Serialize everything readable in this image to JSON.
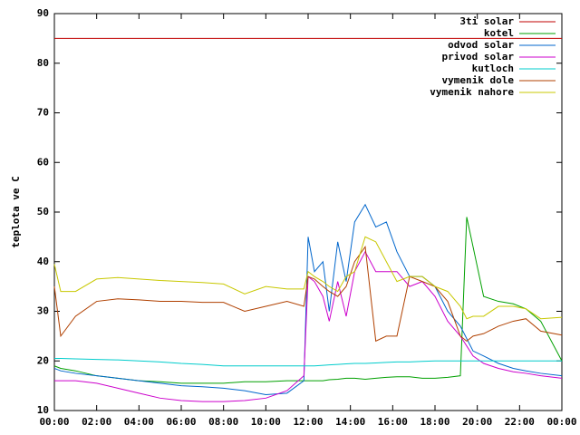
{
  "chart_data": {
    "type": "line",
    "y_label": "teplota ve C",
    "x": [
      0,
      0.3,
      1,
      2,
      3,
      4,
      5,
      6,
      7,
      8,
      9,
      10,
      11,
      11.8,
      12,
      12.3,
      12.7,
      13,
      13.4,
      13.8,
      14.2,
      14.7,
      15.2,
      15.7,
      16.2,
      16.8,
      17.4,
      18,
      18.6,
      19.2,
      19.5,
      19.8,
      20.3,
      21,
      21.7,
      22.3,
      23,
      24
    ],
    "xlim": [
      0,
      24
    ],
    "xticks": [
      {
        "value": 0,
        "label": "00:00"
      },
      {
        "value": 2,
        "label": "02:00"
      },
      {
        "value": 4,
        "label": "04:00"
      },
      {
        "value": 6,
        "label": "06:00"
      },
      {
        "value": 8,
        "label": "08:00"
      },
      {
        "value": 10,
        "label": "10:00"
      },
      {
        "value": 12,
        "label": "12:00"
      },
      {
        "value": 14,
        "label": "14:00"
      },
      {
        "value": 16,
        "label": "16:00"
      },
      {
        "value": 18,
        "label": "18:00"
      },
      {
        "value": 20,
        "label": "20:00"
      },
      {
        "value": 22,
        "label": "22:00"
      },
      {
        "value": 24,
        "label": "00:00"
      }
    ],
    "ylim": [
      10,
      90
    ],
    "yticks": [
      10,
      20,
      30,
      40,
      50,
      60,
      70,
      80,
      90
    ],
    "grid": false,
    "legend": "top-right",
    "series": [
      {
        "name": "3ti solar",
        "color": "#c00000",
        "values": [
          85,
          85,
          85,
          85,
          85,
          85,
          85,
          85,
          85,
          85,
          85,
          85,
          85,
          85,
          85,
          85,
          85,
          85,
          85,
          85,
          85,
          85,
          85,
          85,
          85,
          85,
          85,
          85,
          85,
          85,
          85,
          85,
          85,
          85,
          85,
          85,
          85,
          85
        ]
      },
      {
        "name": "kotel",
        "color": "#00a000",
        "values": [
          19,
          18.5,
          18,
          17,
          16.5,
          16,
          15.8,
          15.5,
          15.5,
          15.5,
          15.8,
          15.8,
          16,
          16,
          16,
          16,
          16,
          16.2,
          16.3,
          16.5,
          16.5,
          16.3,
          16.5,
          16.7,
          16.8,
          16.8,
          16.5,
          16.5,
          16.7,
          17,
          49,
          43,
          33,
          32,
          31.5,
          30.5,
          28,
          20
        ]
      },
      {
        "name": "odvod solar",
        "color": "#0066cc",
        "values": [
          18.5,
          18,
          17.5,
          17,
          16.5,
          16,
          15.5,
          15,
          14.8,
          14.5,
          14,
          13.2,
          13.5,
          16,
          45,
          38,
          40,
          30,
          44,
          36,
          48,
          51.5,
          47,
          48,
          42,
          37,
          37,
          35,
          30,
          27,
          24.5,
          22,
          21,
          19.5,
          18.5,
          18,
          17.5,
          17
        ]
      },
      {
        "name": "privod solar",
        "color": "#cc00cc",
        "values": [
          16,
          16,
          16,
          15.5,
          14.5,
          13.5,
          12.5,
          12,
          11.8,
          11.8,
          12,
          12.5,
          14,
          17,
          37,
          36,
          33,
          28,
          36,
          29,
          38,
          42,
          38,
          38,
          38,
          35,
          36,
          33,
          28,
          25,
          23,
          21,
          19.5,
          18.5,
          17.8,
          17.5,
          17,
          16.5
        ]
      },
      {
        "name": "kutloch",
        "color": "#00cccc",
        "values": [
          20.5,
          20.5,
          20.4,
          20.3,
          20.2,
          20,
          19.8,
          19.5,
          19.3,
          19,
          19,
          19,
          19,
          19,
          19,
          19,
          19.1,
          19.2,
          19.3,
          19.4,
          19.5,
          19.5,
          19.6,
          19.7,
          19.8,
          19.8,
          19.9,
          20,
          20,
          20,
          20,
          20,
          20,
          20,
          20,
          20,
          20,
          20
        ]
      },
      {
        "name": "vymenik dole",
        "color": "#b04000",
        "values": [
          35,
          25,
          29,
          32,
          32.5,
          32.3,
          32,
          32,
          31.8,
          31.8,
          30,
          31,
          32,
          31,
          37,
          36.5,
          35,
          34,
          33,
          35,
          40,
          43,
          24,
          25,
          25,
          37,
          36,
          35,
          32,
          25,
          24,
          25,
          25.5,
          27,
          28,
          28.5,
          26,
          25.2
        ]
      },
      {
        "name": "vymenik nahore",
        "color": "#c8c800",
        "values": [
          39.5,
          34,
          34,
          36.5,
          36.8,
          36.5,
          36.2,
          36,
          35.8,
          35.5,
          33.5,
          35,
          34.5,
          34.5,
          38,
          37,
          36,
          35,
          34,
          37,
          38,
          45,
          44,
          40,
          36,
          37,
          37,
          35,
          34,
          31,
          28.5,
          29,
          29,
          31,
          31,
          30.5,
          28.5,
          28.8
        ]
      }
    ]
  }
}
